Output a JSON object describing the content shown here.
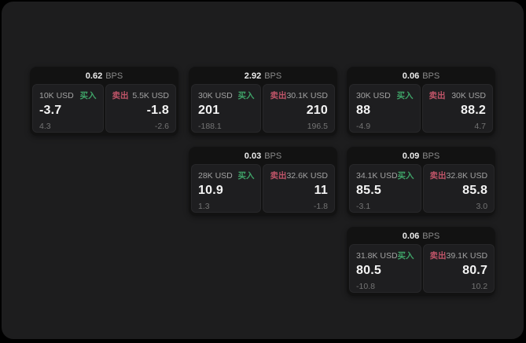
{
  "labels": {
    "bps_unit": "BPS",
    "buy": "买入",
    "sell": "卖出"
  },
  "colors": {
    "page_background": "#1d1d1e",
    "card_background": "#121212",
    "panel_background": "#1e1e20",
    "buy_green": "#3fa368",
    "sell_red": "#bf5468",
    "value_text": "#f4f4f4",
    "muted_text": "#a2a2a2",
    "faint_text": "#747474"
  },
  "cards": [
    {
      "bps": "0.62",
      "buy": {
        "amount": "10K USD",
        "price": "-3.7",
        "sub": "4.3"
      },
      "sell": {
        "amount": "5.5K USD",
        "price": "-1.8",
        "sub": "-2.6"
      }
    },
    {
      "bps": "2.92",
      "buy": {
        "amount": "30K USD",
        "price": "201",
        "sub": "-188.1"
      },
      "sell": {
        "amount": "30.1K USD",
        "price": "210",
        "sub": "196.5"
      }
    },
    {
      "bps": "0.06",
      "buy": {
        "amount": "30K USD",
        "price": "88",
        "sub": "-4.9"
      },
      "sell": {
        "amount": "30K USD",
        "price": "88.2",
        "sub": "4.7"
      }
    },
    {
      "bps": "0.03",
      "buy": {
        "amount": "28K USD",
        "price": "10.9",
        "sub": "1.3"
      },
      "sell": {
        "amount": "32.6K USD",
        "price": "11",
        "sub": "-1.8"
      }
    },
    {
      "bps": "0.09",
      "buy": {
        "amount": "34.1K USD",
        "price": "85.5",
        "sub": "-3.1"
      },
      "sell": {
        "amount": "32.8K USD",
        "price": "85.8",
        "sub": "3.0"
      }
    },
    {
      "bps": "0.06",
      "buy": {
        "amount": "31.8K USD",
        "price": "80.5",
        "sub": "-10.8"
      },
      "sell": {
        "amount": "39.1K USD",
        "price": "80.7",
        "sub": "10.2"
      }
    }
  ]
}
